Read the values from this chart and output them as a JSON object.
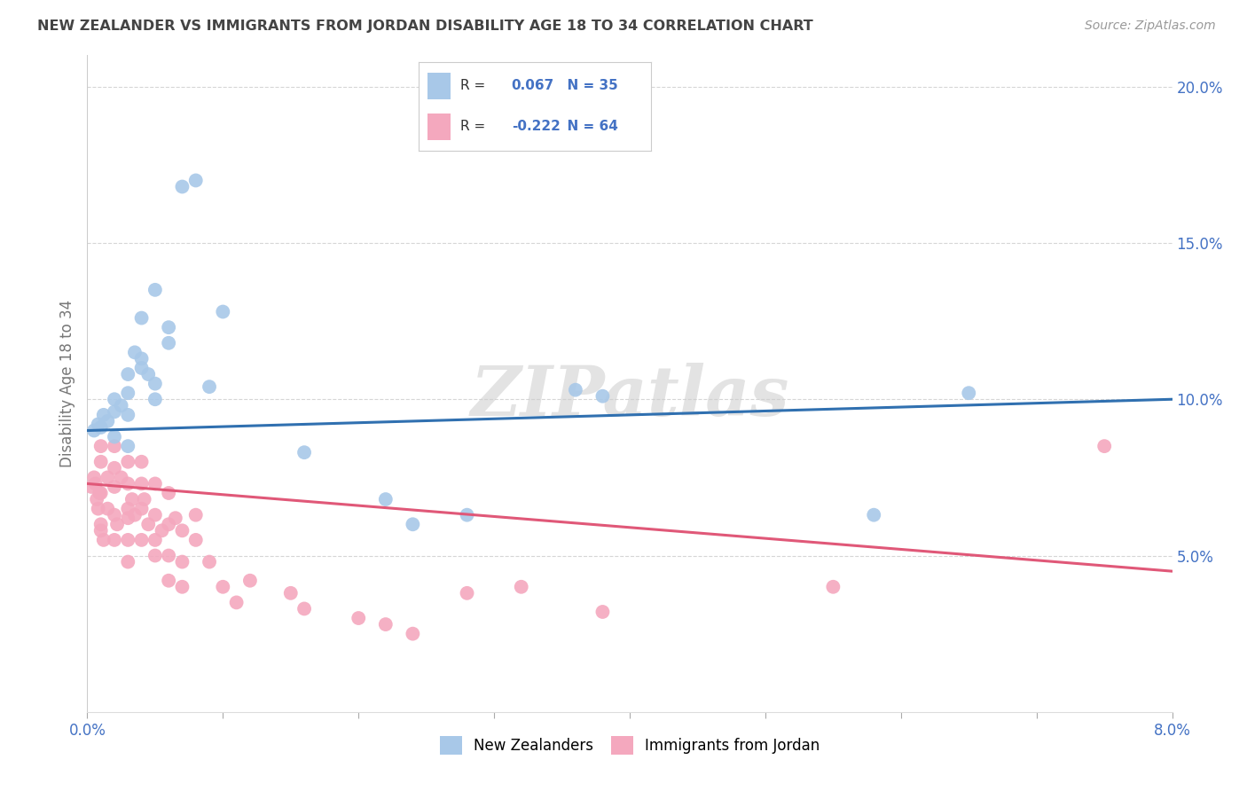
{
  "title": "NEW ZEALANDER VS IMMIGRANTS FROM JORDAN DISABILITY AGE 18 TO 34 CORRELATION CHART",
  "source": "Source: ZipAtlas.com",
  "ylabel": "Disability Age 18 to 34",
  "legend_entries": [
    {
      "label": "New Zealanders",
      "R": "0.067",
      "N": "35",
      "dot_color": "#a8c8e8",
      "line_color": "#3070b0"
    },
    {
      "label": "Immigrants from Jordan",
      "R": "-0.222",
      "N": "64",
      "dot_color": "#f4a8be",
      "line_color": "#e05878"
    }
  ],
  "background_color": "#ffffff",
  "grid_color": "#cccccc",
  "watermark": "ZIPatlas",
  "title_color": "#444444",
  "source_color": "#999999",
  "axis_tick_color": "#4472c4",
  "nz_x": [
    0.0005,
    0.0008,
    0.001,
    0.0012,
    0.0015,
    0.002,
    0.002,
    0.002,
    0.0025,
    0.003,
    0.003,
    0.003,
    0.003,
    0.0035,
    0.004,
    0.004,
    0.004,
    0.0045,
    0.005,
    0.005,
    0.005,
    0.006,
    0.006,
    0.007,
    0.008,
    0.009,
    0.01,
    0.016,
    0.022,
    0.024,
    0.028,
    0.036,
    0.038,
    0.058,
    0.065
  ],
  "nz_y": [
    0.09,
    0.092,
    0.091,
    0.095,
    0.093,
    0.1,
    0.096,
    0.088,
    0.098,
    0.102,
    0.108,
    0.095,
    0.085,
    0.115,
    0.113,
    0.126,
    0.11,
    0.108,
    0.135,
    0.105,
    0.1,
    0.118,
    0.123,
    0.168,
    0.17,
    0.104,
    0.128,
    0.083,
    0.068,
    0.06,
    0.063,
    0.103,
    0.101,
    0.063,
    0.102
  ],
  "jordan_x": [
    0.0003,
    0.0005,
    0.0006,
    0.0007,
    0.0008,
    0.0009,
    0.001,
    0.001,
    0.001,
    0.001,
    0.001,
    0.0012,
    0.0015,
    0.0015,
    0.002,
    0.002,
    0.002,
    0.002,
    0.002,
    0.0022,
    0.0025,
    0.003,
    0.003,
    0.003,
    0.003,
    0.003,
    0.003,
    0.0033,
    0.0035,
    0.004,
    0.004,
    0.004,
    0.004,
    0.0042,
    0.0045,
    0.005,
    0.005,
    0.005,
    0.005,
    0.0055,
    0.006,
    0.006,
    0.006,
    0.006,
    0.0065,
    0.007,
    0.007,
    0.007,
    0.008,
    0.008,
    0.009,
    0.01,
    0.011,
    0.012,
    0.015,
    0.016,
    0.02,
    0.022,
    0.024,
    0.028,
    0.032,
    0.038,
    0.055,
    0.075
  ],
  "jordan_y": [
    0.072,
    0.075,
    0.073,
    0.068,
    0.065,
    0.07,
    0.085,
    0.08,
    0.07,
    0.06,
    0.058,
    0.055,
    0.075,
    0.065,
    0.085,
    0.078,
    0.072,
    0.063,
    0.055,
    0.06,
    0.075,
    0.08,
    0.073,
    0.065,
    0.062,
    0.055,
    0.048,
    0.068,
    0.063,
    0.08,
    0.073,
    0.065,
    0.055,
    0.068,
    0.06,
    0.073,
    0.063,
    0.055,
    0.05,
    0.058,
    0.07,
    0.06,
    0.05,
    0.042,
    0.062,
    0.058,
    0.048,
    0.04,
    0.063,
    0.055,
    0.048,
    0.04,
    0.035,
    0.042,
    0.038,
    0.033,
    0.03,
    0.028,
    0.025,
    0.038,
    0.04,
    0.032,
    0.04,
    0.085
  ],
  "xlim": [
    0.0,
    0.08
  ],
  "ylim": [
    0.0,
    0.21
  ],
  "yticks_right": [
    0.2,
    0.15,
    0.1,
    0.05
  ],
  "xtick_positions": [
    0.0,
    0.01,
    0.02,
    0.03,
    0.04,
    0.05,
    0.06,
    0.07,
    0.08
  ]
}
